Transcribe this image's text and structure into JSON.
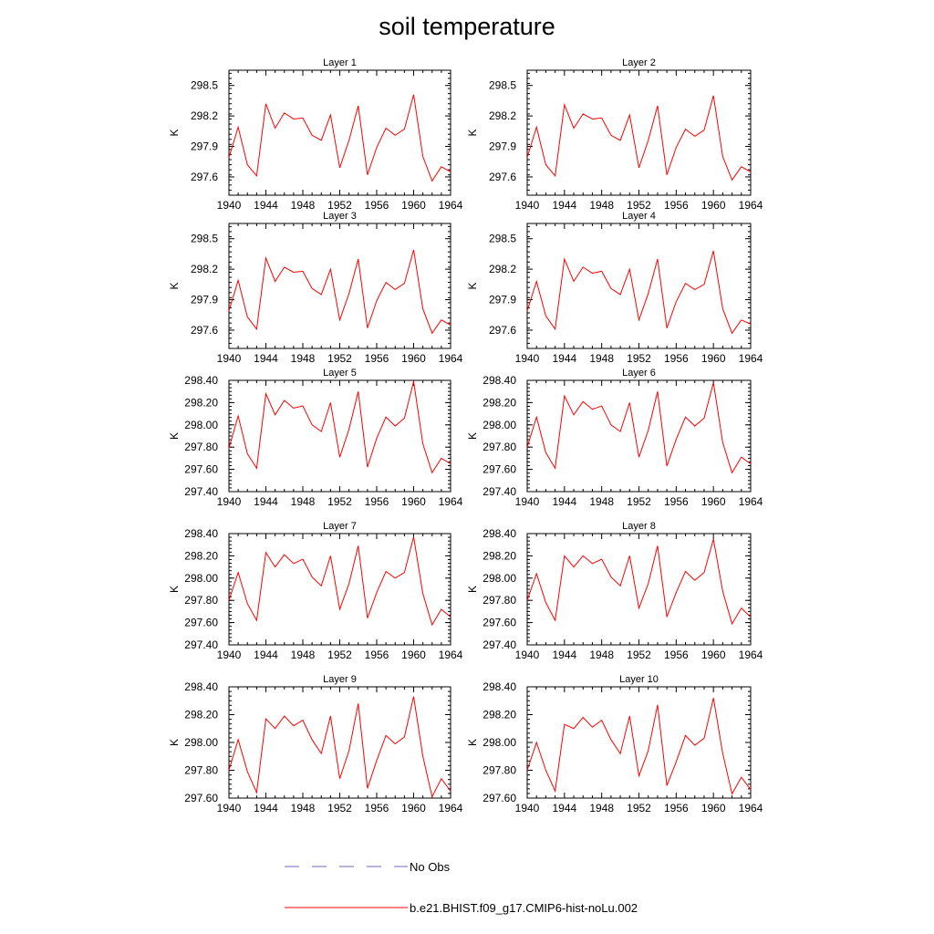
{
  "title": "soil temperature",
  "legend": [
    {
      "label": "No Obs",
      "color": "#6b6bb3",
      "style": "dashed"
    },
    {
      "label": "b.e21.BHIST.f09_g17.CMIP6-hist-noLu.002",
      "color": "#ff0000",
      "style": "solid"
    }
  ],
  "chart_data": [
    {
      "type": "line",
      "title": "Layer 1",
      "ylabel": "K",
      "xlim": [
        1940,
        1964
      ],
      "ylim": [
        297.42,
        298.65
      ],
      "xticks": [
        1940,
        1944,
        1948,
        1952,
        1956,
        1960,
        1964
      ],
      "yticks": [
        297.6,
        297.9,
        298.2,
        298.5
      ],
      "ytick_labels": [
        "297.6",
        "297.9",
        "298.2",
        "298.5"
      ],
      "x": [
        1940,
        1941,
        1942,
        1943,
        1944,
        1945,
        1946,
        1947,
        1948,
        1949,
        1950,
        1951,
        1952,
        1953,
        1954,
        1955,
        1956,
        1957,
        1958,
        1959,
        1960,
        1961,
        1962,
        1963,
        1964
      ],
      "series": [
        {
          "name": "b.e21.BHIST.f09_g17.CMIP6-hist-noLu.002",
          "color": "#ff0000",
          "values": [
            297.79,
            298.09,
            297.72,
            297.61,
            298.32,
            298.08,
            298.23,
            298.17,
            298.18,
            298.01,
            297.96,
            298.21,
            297.69,
            297.96,
            298.3,
            297.62,
            297.89,
            298.08,
            298.01,
            298.07,
            298.41,
            297.8,
            297.56,
            297.7,
            297.65
          ]
        }
      ]
    },
    {
      "type": "line",
      "title": "Layer 2",
      "ylabel": "K",
      "xlim": [
        1940,
        1964
      ],
      "ylim": [
        297.42,
        298.65
      ],
      "xticks": [
        1940,
        1944,
        1948,
        1952,
        1956,
        1960,
        1964
      ],
      "yticks": [
        297.6,
        297.9,
        298.2,
        298.5
      ],
      "ytick_labels": [
        "297.6",
        "297.9",
        "298.2",
        "298.5"
      ],
      "x": [
        1940,
        1941,
        1942,
        1943,
        1944,
        1945,
        1946,
        1947,
        1948,
        1949,
        1950,
        1951,
        1952,
        1953,
        1954,
        1955,
        1956,
        1957,
        1958,
        1959,
        1960,
        1961,
        1962,
        1963,
        1964
      ],
      "series": [
        {
          "name": "b.e21.BHIST.f09_g17.CMIP6-hist-noLu.002",
          "color": "#ff0000",
          "values": [
            297.79,
            298.09,
            297.72,
            297.61,
            298.31,
            298.08,
            298.22,
            298.17,
            298.18,
            298.01,
            297.96,
            298.21,
            297.69,
            297.96,
            298.3,
            297.62,
            297.89,
            298.07,
            298.0,
            298.06,
            298.4,
            297.8,
            297.57,
            297.7,
            297.65
          ]
        }
      ]
    },
    {
      "type": "line",
      "title": "Layer 3",
      "ylabel": "K",
      "xlim": [
        1940,
        1964
      ],
      "ylim": [
        297.42,
        298.65
      ],
      "xticks": [
        1940,
        1944,
        1948,
        1952,
        1956,
        1960,
        1964
      ],
      "yticks": [
        297.6,
        297.9,
        298.2,
        298.5
      ],
      "ytick_labels": [
        "297.6",
        "297.9",
        "298.2",
        "298.5"
      ],
      "x": [
        1940,
        1941,
        1942,
        1943,
        1944,
        1945,
        1946,
        1947,
        1948,
        1949,
        1950,
        1951,
        1952,
        1953,
        1954,
        1955,
        1956,
        1957,
        1958,
        1959,
        1960,
        1961,
        1962,
        1963,
        1964
      ],
      "series": [
        {
          "name": "b.e21.BHIST.f09_g17.CMIP6-hist-noLu.002",
          "color": "#ff0000",
          "values": [
            297.79,
            298.09,
            297.73,
            297.61,
            298.31,
            298.08,
            298.22,
            298.17,
            298.18,
            298.01,
            297.95,
            298.2,
            297.7,
            297.96,
            298.3,
            297.62,
            297.89,
            298.07,
            298.0,
            298.06,
            298.39,
            297.81,
            297.57,
            297.7,
            297.65
          ]
        }
      ]
    },
    {
      "type": "line",
      "title": "Layer 4",
      "ylabel": "K",
      "xlim": [
        1940,
        1964
      ],
      "ylim": [
        297.42,
        298.65
      ],
      "xticks": [
        1940,
        1944,
        1948,
        1952,
        1956,
        1960,
        1964
      ],
      "yticks": [
        297.6,
        297.9,
        298.2,
        298.5
      ],
      "ytick_labels": [
        "297.6",
        "297.9",
        "298.2",
        "298.5"
      ],
      "x": [
        1940,
        1941,
        1942,
        1943,
        1944,
        1945,
        1946,
        1947,
        1948,
        1949,
        1950,
        1951,
        1952,
        1953,
        1954,
        1955,
        1956,
        1957,
        1958,
        1959,
        1960,
        1961,
        1962,
        1963,
        1964
      ],
      "series": [
        {
          "name": "b.e21.BHIST.f09_g17.CMIP6-hist-noLu.002",
          "color": "#ff0000",
          "values": [
            297.79,
            298.08,
            297.74,
            297.61,
            298.3,
            298.08,
            298.22,
            298.16,
            298.18,
            298.01,
            297.95,
            298.2,
            297.7,
            297.96,
            298.3,
            297.62,
            297.88,
            298.06,
            298.0,
            298.05,
            298.38,
            297.81,
            297.57,
            297.7,
            297.66
          ]
        }
      ]
    },
    {
      "type": "line",
      "title": "Layer 5",
      "ylabel": "K",
      "xlim": [
        1940,
        1964
      ],
      "ylim": [
        297.4,
        298.4
      ],
      "xticks": [
        1940,
        1944,
        1948,
        1952,
        1956,
        1960,
        1964
      ],
      "yticks": [
        297.4,
        297.6,
        297.8,
        298.0,
        298.2,
        298.4
      ],
      "ytick_labels": [
        "297.40",
        "297.60",
        "297.80",
        "298.00",
        "298.20",
        "298.40"
      ],
      "x": [
        1940,
        1941,
        1942,
        1943,
        1944,
        1945,
        1946,
        1947,
        1948,
        1949,
        1950,
        1951,
        1952,
        1953,
        1954,
        1955,
        1956,
        1957,
        1958,
        1959,
        1960,
        1961,
        1962,
        1963,
        1964
      ],
      "series": [
        {
          "name": "b.e21.BHIST.f09_g17.CMIP6-hist-noLu.002",
          "color": "#ff0000",
          "values": [
            297.79,
            298.08,
            297.74,
            297.61,
            298.28,
            298.09,
            298.22,
            298.15,
            298.17,
            298.0,
            297.94,
            298.2,
            297.71,
            297.96,
            298.3,
            297.62,
            297.88,
            298.07,
            297.99,
            298.06,
            298.39,
            297.83,
            297.57,
            297.7,
            297.65
          ]
        }
      ]
    },
    {
      "type": "line",
      "title": "Layer 6",
      "ylabel": "K",
      "xlim": [
        1940,
        1964
      ],
      "ylim": [
        297.4,
        298.4
      ],
      "xticks": [
        1940,
        1944,
        1948,
        1952,
        1956,
        1960,
        1964
      ],
      "yticks": [
        297.4,
        297.6,
        297.8,
        298.0,
        298.2,
        298.4
      ],
      "ytick_labels": [
        "297.40",
        "297.60",
        "297.80",
        "298.00",
        "298.20",
        "298.40"
      ],
      "x": [
        1940,
        1941,
        1942,
        1943,
        1944,
        1945,
        1946,
        1947,
        1948,
        1949,
        1950,
        1951,
        1952,
        1953,
        1954,
        1955,
        1956,
        1957,
        1958,
        1959,
        1960,
        1961,
        1962,
        1963,
        1964
      ],
      "series": [
        {
          "name": "b.e21.BHIST.f09_g17.CMIP6-hist-noLu.002",
          "color": "#ff0000",
          "values": [
            297.8,
            298.07,
            297.75,
            297.61,
            298.26,
            298.09,
            298.21,
            298.14,
            298.17,
            298.0,
            297.94,
            298.2,
            297.71,
            297.95,
            298.3,
            297.63,
            297.87,
            298.07,
            297.99,
            298.06,
            298.38,
            297.84,
            297.57,
            297.71,
            297.65
          ]
        }
      ]
    },
    {
      "type": "line",
      "title": "Layer 7",
      "ylabel": "K",
      "xlim": [
        1940,
        1964
      ],
      "ylim": [
        297.4,
        298.4
      ],
      "xticks": [
        1940,
        1944,
        1948,
        1952,
        1956,
        1960,
        1964
      ],
      "yticks": [
        297.4,
        297.6,
        297.8,
        298.0,
        298.2,
        298.4
      ],
      "ytick_labels": [
        "297.40",
        "297.60",
        "297.80",
        "298.00",
        "298.20",
        "298.40"
      ],
      "x": [
        1940,
        1941,
        1942,
        1943,
        1944,
        1945,
        1946,
        1947,
        1948,
        1949,
        1950,
        1951,
        1952,
        1953,
        1954,
        1955,
        1956,
        1957,
        1958,
        1959,
        1960,
        1961,
        1962,
        1963,
        1964
      ],
      "series": [
        {
          "name": "b.e21.BHIST.f09_g17.CMIP6-hist-noLu.002",
          "color": "#ff0000",
          "values": [
            297.8,
            298.05,
            297.77,
            297.62,
            298.23,
            298.1,
            298.21,
            298.13,
            298.17,
            298.01,
            297.93,
            298.2,
            297.72,
            297.95,
            298.29,
            297.64,
            297.87,
            298.06,
            298.0,
            298.05,
            298.37,
            297.86,
            297.58,
            297.72,
            297.65
          ]
        }
      ]
    },
    {
      "type": "line",
      "title": "Layer 8",
      "ylabel": "K",
      "xlim": [
        1940,
        1964
      ],
      "ylim": [
        297.4,
        298.4
      ],
      "xticks": [
        1940,
        1944,
        1948,
        1952,
        1956,
        1960,
        1964
      ],
      "yticks": [
        297.4,
        297.6,
        297.8,
        298.0,
        298.2,
        298.4
      ],
      "ytick_labels": [
        "297.40",
        "297.60",
        "297.80",
        "298.00",
        "298.20",
        "298.40"
      ],
      "x": [
        1940,
        1941,
        1942,
        1943,
        1944,
        1945,
        1946,
        1947,
        1948,
        1949,
        1950,
        1951,
        1952,
        1953,
        1954,
        1955,
        1956,
        1957,
        1958,
        1959,
        1960,
        1961,
        1962,
        1963,
        1964
      ],
      "series": [
        {
          "name": "b.e21.BHIST.f09_g17.CMIP6-hist-noLu.002",
          "color": "#ff0000",
          "values": [
            297.8,
            298.04,
            297.78,
            297.62,
            298.2,
            298.1,
            298.2,
            298.13,
            298.17,
            298.01,
            297.93,
            298.2,
            297.73,
            297.95,
            298.29,
            297.65,
            297.87,
            298.06,
            297.98,
            298.05,
            298.35,
            297.88,
            297.59,
            297.73,
            297.65
          ]
        }
      ]
    },
    {
      "type": "line",
      "title": "Layer 9",
      "ylabel": "K",
      "xlim": [
        1940,
        1964
      ],
      "ylim": [
        297.6,
        298.4
      ],
      "xticks": [
        1940,
        1944,
        1948,
        1952,
        1956,
        1960,
        1964
      ],
      "yticks": [
        297.6,
        297.8,
        298.0,
        298.2,
        298.4
      ],
      "ytick_labels": [
        "297.60",
        "297.80",
        "298.00",
        "298.20",
        "298.40"
      ],
      "x": [
        1940,
        1941,
        1942,
        1943,
        1944,
        1945,
        1946,
        1947,
        1948,
        1949,
        1950,
        1951,
        1952,
        1953,
        1954,
        1955,
        1956,
        1957,
        1958,
        1959,
        1960,
        1961,
        1962,
        1963,
        1964
      ],
      "series": [
        {
          "name": "b.e21.BHIST.f09_g17.CMIP6-hist-noLu.002",
          "color": "#ff0000",
          "values": [
            297.8,
            298.02,
            297.79,
            297.64,
            298.17,
            298.1,
            298.19,
            298.12,
            298.16,
            298.02,
            297.92,
            298.19,
            297.74,
            297.94,
            298.28,
            297.67,
            297.87,
            298.05,
            297.99,
            298.04,
            298.33,
            297.9,
            297.61,
            297.74,
            297.65
          ]
        }
      ]
    },
    {
      "type": "line",
      "title": "Layer 10",
      "ylabel": "K",
      "xlim": [
        1940,
        1964
      ],
      "ylim": [
        297.6,
        298.4
      ],
      "xticks": [
        1940,
        1944,
        1948,
        1952,
        1956,
        1960,
        1964
      ],
      "yticks": [
        297.6,
        297.8,
        298.0,
        298.2,
        298.4
      ],
      "ytick_labels": [
        "297.60",
        "297.80",
        "298.00",
        "298.20",
        "298.40"
      ],
      "x": [
        1940,
        1941,
        1942,
        1943,
        1944,
        1945,
        1946,
        1947,
        1948,
        1949,
        1950,
        1951,
        1952,
        1953,
        1954,
        1955,
        1956,
        1957,
        1958,
        1959,
        1960,
        1961,
        1962,
        1963,
        1964
      ],
      "series": [
        {
          "name": "b.e21.BHIST.f09_g17.CMIP6-hist-noLu.002",
          "color": "#ff0000",
          "values": [
            297.8,
            298.0,
            297.8,
            297.65,
            298.13,
            298.1,
            298.18,
            298.11,
            298.16,
            298.02,
            297.92,
            298.19,
            297.76,
            297.94,
            298.27,
            297.69,
            297.86,
            298.05,
            297.98,
            298.03,
            298.32,
            297.92,
            297.63,
            297.75,
            297.66
          ]
        }
      ]
    }
  ]
}
